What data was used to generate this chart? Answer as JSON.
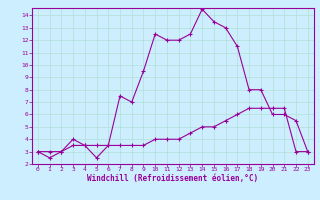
{
  "xlabel": "Windchill (Refroidissement éolien,°C)",
  "hours": [
    0,
    1,
    2,
    3,
    4,
    5,
    6,
    7,
    8,
    9,
    10,
    11,
    12,
    13,
    14,
    15,
    16,
    17,
    18,
    19,
    20,
    21,
    22,
    23
  ],
  "windchill": [
    3,
    2.5,
    3,
    4,
    3.5,
    2.5,
    3.5,
    7.5,
    7,
    9.5,
    12.5,
    12,
    12,
    12.5,
    14.5,
    13.5,
    13,
    11.5,
    8,
    8,
    6,
    6,
    5.5,
    3
  ],
  "temp": [
    3,
    3,
    3,
    3.5,
    3.5,
    3.5,
    3.5,
    3.5,
    3.5,
    3.5,
    4,
    4,
    4,
    4.5,
    5,
    5,
    5.5,
    6,
    6.5,
    6.5,
    6.5,
    6.5,
    3,
    3
  ],
  "line_color": "#990099",
  "bg_color": "#cceeff",
  "grid_color": "#aaddcc",
  "ylim": [
    2,
    14.6
  ],
  "yticks": [
    2,
    3,
    4,
    5,
    6,
    7,
    8,
    9,
    10,
    11,
    12,
    13,
    14
  ],
  "xlim": [
    -0.5,
    23.5
  ],
  "xticks": [
    0,
    1,
    2,
    3,
    4,
    5,
    6,
    7,
    8,
    9,
    10,
    11,
    12,
    13,
    14,
    15,
    16,
    17,
    18,
    19,
    20,
    21,
    22,
    23
  ],
  "marker": "+",
  "markersize": 3,
  "linewidth": 0.8,
  "tick_fontsize": 4.5,
  "xlabel_fontsize": 5.5
}
